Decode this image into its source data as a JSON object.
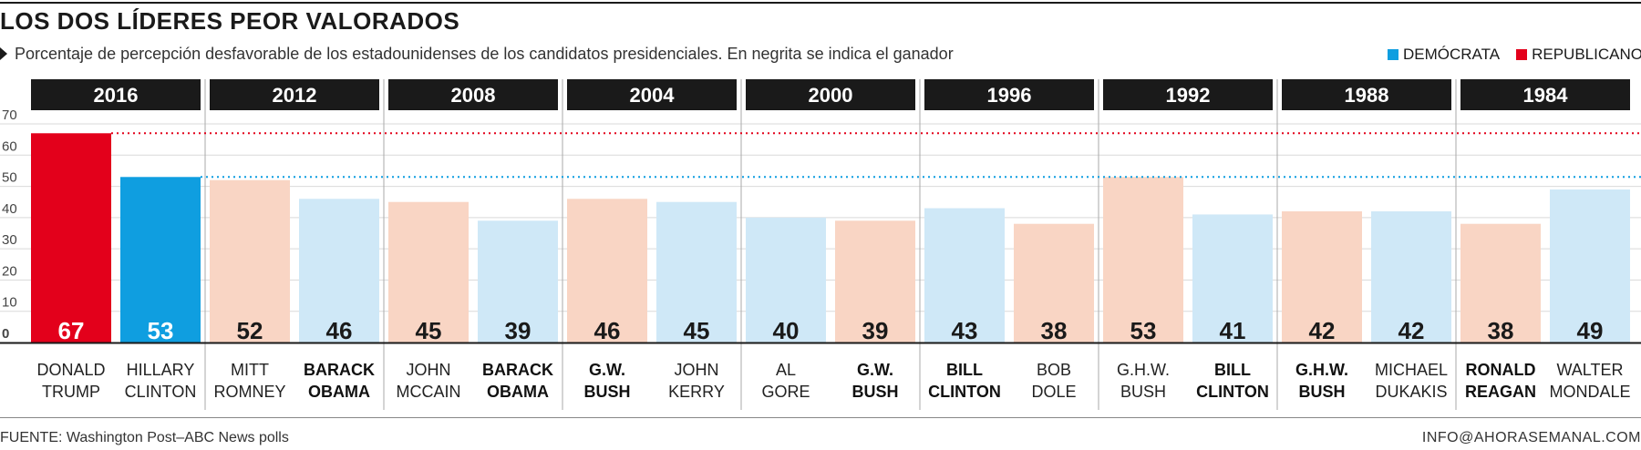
{
  "title": "LOS DOS LÍDERES PEOR VALORADOS",
  "subtitle": "Porcentaje de percepción desfavorable de los estadounidenses de los candidatos presidenciales. En negrita se indica el ganador",
  "legend": [
    {
      "label": "DEMÓCRATA",
      "color": "#0f9ee0"
    },
    {
      "label": "REPUBLICANO",
      "color": "#e3001b"
    }
  ],
  "source": "FUENTE:  Washington Post–ABC News polls",
  "credit": "INFO@AHORASEMANAL.COM",
  "colors": {
    "rep_strong": "#e3001b",
    "dem_strong": "#0f9ee0",
    "rep_light": "#f9d5c4",
    "dem_light": "#cfe8f7",
    "header": "#1a1a1a"
  },
  "chart_data": {
    "type": "bar",
    "ylabel": "",
    "ylim": [
      0,
      70
    ],
    "yticks": [
      "0",
      "10",
      "20",
      "30",
      "40",
      "50",
      "60",
      "70"
    ],
    "reference_lines": [
      {
        "value": 67,
        "color": "#e3001b",
        "style": "dotted"
      },
      {
        "value": 53,
        "color": "#0f9ee0",
        "style": "dotted"
      }
    ],
    "groups": [
      {
        "year": "2016",
        "candidates": [
          {
            "name": [
              "DONALD",
              "TRUMP"
            ],
            "value": 67,
            "party": "rep",
            "winner": false,
            "highlight": true
          },
          {
            "name": [
              "HILLARY",
              "CLINTON"
            ],
            "value": 53,
            "party": "dem",
            "winner": false,
            "highlight": true
          }
        ]
      },
      {
        "year": "2012",
        "candidates": [
          {
            "name": [
              "MITT",
              "ROMNEY"
            ],
            "value": 52,
            "party": "rep",
            "winner": false
          },
          {
            "name": [
              "BARACK",
              "OBAMA"
            ],
            "value": 46,
            "party": "dem",
            "winner": true
          }
        ]
      },
      {
        "year": "2008",
        "candidates": [
          {
            "name": [
              "JOHN",
              "MCCAIN"
            ],
            "value": 45,
            "party": "rep",
            "winner": false
          },
          {
            "name": [
              "BARACK",
              "OBAMA"
            ],
            "value": 39,
            "party": "dem",
            "winner": true
          }
        ]
      },
      {
        "year": "2004",
        "candidates": [
          {
            "name": [
              "G.W.",
              "BUSH"
            ],
            "value": 46,
            "party": "rep",
            "winner": true
          },
          {
            "name": [
              "JOHN",
              "KERRY"
            ],
            "value": 45,
            "party": "dem",
            "winner": false
          }
        ]
      },
      {
        "year": "2000",
        "candidates": [
          {
            "name": [
              "AL",
              "GORE"
            ],
            "value": 40,
            "party": "dem",
            "winner": false
          },
          {
            "name": [
              "G.W.",
              "BUSH"
            ],
            "value": 39,
            "party": "rep",
            "winner": true
          }
        ]
      },
      {
        "year": "1996",
        "candidates": [
          {
            "name": [
              "BILL",
              "CLINTON"
            ],
            "value": 43,
            "party": "dem",
            "winner": true
          },
          {
            "name": [
              "BOB",
              "DOLE"
            ],
            "value": 38,
            "party": "rep",
            "winner": false
          }
        ]
      },
      {
        "year": "1992",
        "candidates": [
          {
            "name": [
              "G.H.W.",
              "BUSH"
            ],
            "value": 53,
            "party": "rep",
            "winner": false
          },
          {
            "name": [
              "BILL",
              "CLINTON"
            ],
            "value": 41,
            "party": "dem",
            "winner": true
          }
        ]
      },
      {
        "year": "1988",
        "candidates": [
          {
            "name": [
              "G.H.W.",
              "BUSH"
            ],
            "value": 42,
            "party": "rep",
            "winner": true
          },
          {
            "name": [
              "MICHAEL",
              "DUKAKIS"
            ],
            "value": 42,
            "party": "dem",
            "winner": false
          }
        ]
      },
      {
        "year": "1984",
        "candidates": [
          {
            "name": [
              "RONALD",
              "REAGAN"
            ],
            "value": 38,
            "party": "rep",
            "winner": true
          },
          {
            "name": [
              "WALTER",
              "MONDALE"
            ],
            "value": 49,
            "party": "dem",
            "winner": false
          }
        ]
      }
    ]
  }
}
